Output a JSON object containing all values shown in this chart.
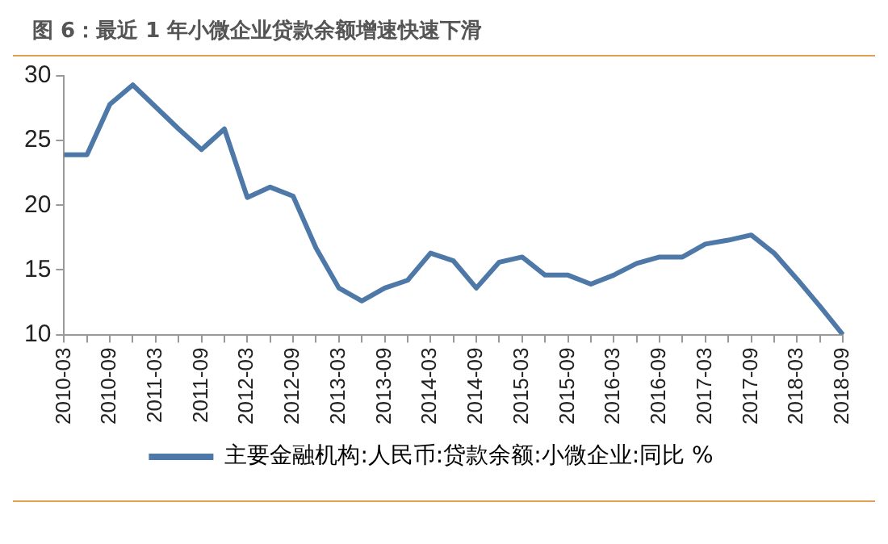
{
  "chart_data": {
    "type": "line",
    "title": "图 6：最近 1 年小微企业贷款余额增速快速下滑",
    "categories": [
      "2010-03",
      null,
      "2010-09",
      null,
      "2011-03",
      null,
      "2011-09",
      null,
      "2012-03",
      null,
      "2012-09",
      null,
      "2013-03",
      null,
      "2013-09",
      null,
      "2014-03",
      null,
      "2014-09",
      null,
      "2015-03",
      null,
      "2015-09",
      null,
      "2016-03",
      null,
      "2016-09",
      null,
      "2017-03",
      null,
      "2017-09",
      null,
      "2018-03",
      null,
      "2018-09"
    ],
    "series": [
      {
        "name": "主要金融机构:人民币:贷款余额:小微企业:同比 %",
        "color": "#4d78a8",
        "values": [
          23.9,
          23.9,
          27.8,
          29.3,
          27.6,
          25.9,
          24.3,
          25.9,
          20.6,
          21.4,
          20.7,
          16.7,
          13.6,
          12.6,
          13.6,
          14.2,
          16.3,
          15.7,
          13.6,
          15.6,
          16.0,
          14.6,
          14.6,
          13.9,
          14.6,
          15.5,
          16.0,
          16.0,
          17.0,
          17.3,
          17.7,
          16.3,
          14.3,
          12.2,
          10.0
        ]
      }
    ],
    "ylim": [
      10,
      30
    ],
    "yticks": [
      10,
      15,
      20,
      25,
      30
    ],
    "legend": "bottom",
    "marker": "none",
    "line_style": "solid"
  }
}
